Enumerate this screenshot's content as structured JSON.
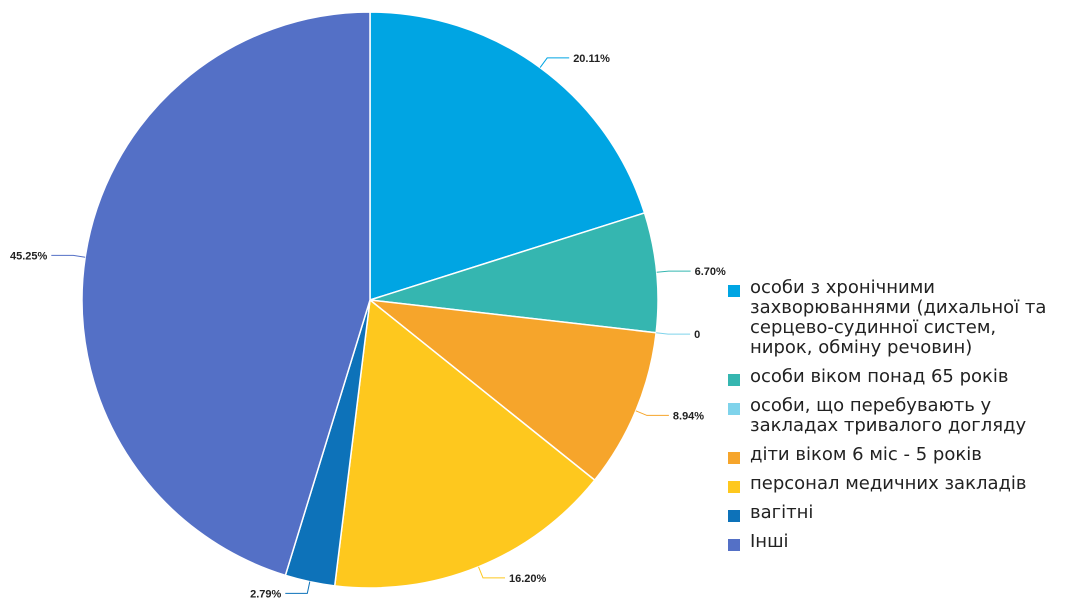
{
  "chart_data": {
    "type": "pie",
    "title": "",
    "slices": [
      {
        "label": "особи з хронічними\nзахворюваннями (дихальної та\n серцево-судинної систем,\nнирок, обміну речовин)",
        "value": 20.11,
        "display": "20.11%",
        "color": "#00a5e3"
      },
      {
        "label": "особи віком понад 65 років",
        "value": 6.7,
        "display": "6.70%",
        "color": "#35b6b0"
      },
      {
        "label": "особи, що перебувають у\nзакладах тривалого догляду",
        "value": 0,
        "display": "0",
        "color": "#7fd3eb"
      },
      {
        "label": "діти віком 6 міс - 5 років",
        "value": 8.94,
        "display": "8.94%",
        "color": "#f6a52b"
      },
      {
        "label": "персонал медичних закладів",
        "value": 16.2,
        "display": "16.20%",
        "color": "#fec81e"
      },
      {
        "label": "вагітні",
        "value": 2.79,
        "display": "2.79%",
        "color": "#0d72b9"
      },
      {
        "label": "Інші",
        "value": 45.25,
        "display": "45.25%",
        "color": "#5470c6"
      }
    ],
    "start_angle": "12 o'clock",
    "direction": "clockwise",
    "legend_position": "right"
  }
}
